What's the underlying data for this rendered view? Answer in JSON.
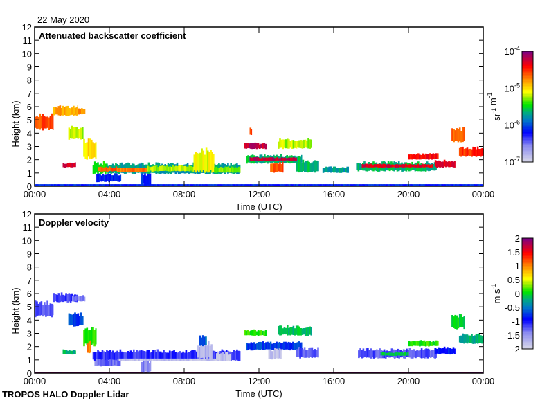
{
  "date_label": "22 May 2020",
  "footer": "TROPOS HALO Doppler Lidar",
  "chart_data": [
    {
      "type": "heatmap",
      "title": "Attenuated backscatter coefficient",
      "xlabel": "Time (UTC)",
      "ylabel": "Height (km)",
      "xlim": [
        0,
        24
      ],
      "ylim": [
        0,
        12
      ],
      "yticks": [
        "0",
        "1",
        "2",
        "3",
        "4",
        "5",
        "6",
        "7",
        "8",
        "9",
        "10",
        "11",
        "12"
      ],
      "xticks": [
        "00:00",
        "04:00",
        "08:00",
        "12:00",
        "16:00",
        "20:00",
        "00:00"
      ],
      "colorbar": {
        "scale": "log10",
        "range": [
          -7,
          -4
        ],
        "ticks": [
          {
            "base": "10",
            "exp": "-4"
          },
          {
            "base": "10",
            "exp": "-5"
          },
          {
            "base": "10",
            "exp": "-6"
          },
          {
            "base": "10",
            "exp": "-7"
          }
        ],
        "unit_parts": [
          {
            "t": "sr",
            "e": "-1"
          },
          {
            "t": " m",
            "e": "-1"
          }
        ]
      },
      "layers_columns": [
        "t_start_h",
        "t_end_h",
        "base_km",
        "top_km",
        "log10_value"
      ],
      "layers": [
        [
          0,
          24,
          0,
          0.15,
          -6.1
        ],
        [
          0,
          1.0,
          4.2,
          5.5,
          -4.6
        ],
        [
          1.0,
          2.3,
          5.3,
          6.1,
          -4.8
        ],
        [
          2.0,
          2.7,
          5.4,
          5.9,
          -4.8
        ],
        [
          1.8,
          2.6,
          3.5,
          4.6,
          -5.2
        ],
        [
          2.6,
          3.3,
          2.0,
          3.7,
          -5.0
        ],
        [
          1.5,
          2.2,
          1.4,
          1.8,
          -4.2
        ],
        [
          3.3,
          4.6,
          0.3,
          1.0,
          -6.1
        ],
        [
          5.7,
          6.2,
          0,
          1.1,
          -6.1
        ],
        [
          3.1,
          3.9,
          0.9,
          1.9,
          -5.5
        ],
        [
          3.9,
          11,
          0.9,
          1.8,
          -5.7
        ],
        [
          3.4,
          4.4,
          1.1,
          1.5,
          -4.6
        ],
        [
          4.4,
          6,
          1.1,
          1.4,
          -4.7
        ],
        [
          6,
          8.5,
          1.1,
          1.6,
          -5.2
        ],
        [
          8.5,
          9.6,
          1.0,
          2.9,
          -5.1
        ],
        [
          9.6,
          11,
          1.0,
          1.5,
          -5.3
        ],
        [
          11.3,
          14.3,
          1.7,
          2.4,
          -5.6
        ],
        [
          11.5,
          14.0,
          1.9,
          2.2,
          -4.2
        ],
        [
          11.2,
          12.4,
          2.8,
          3.3,
          -4.2
        ],
        [
          11.5,
          11.6,
          3.8,
          4.5,
          -4.6
        ],
        [
          12.6,
          13.3,
          1.0,
          1.9,
          -4.6
        ],
        [
          13.0,
          14.8,
          2.8,
          3.6,
          -5.2
        ],
        [
          14.0,
          15.2,
          1.0,
          2.0,
          -5.6
        ],
        [
          15.4,
          16.8,
          1.0,
          1.5,
          -5.7
        ],
        [
          17.2,
          21.5,
          1.1,
          1.9,
          -5.6
        ],
        [
          17.5,
          21.3,
          1.4,
          1.7,
          -4.3
        ],
        [
          20.0,
          21.6,
          2.0,
          2.5,
          -4.4
        ],
        [
          21.4,
          22.5,
          1.4,
          2.0,
          -4.3
        ],
        [
          22.3,
          23.0,
          3.3,
          4.5,
          -4.6
        ],
        [
          22.7,
          24,
          2.2,
          3.0,
          -4.5
        ]
      ]
    },
    {
      "type": "heatmap",
      "title": "Doppler velocity",
      "xlabel": "Time (UTC)",
      "ylabel": "Height (km)",
      "xlim": [
        0,
        24
      ],
      "ylim": [
        0,
        12
      ],
      "yticks": [
        "0",
        "1",
        "2",
        "3",
        "4",
        "5",
        "6",
        "7",
        "8",
        "9",
        "10",
        "11",
        "12"
      ],
      "xticks": [
        "00:00",
        "04:00",
        "08:00",
        "12:00",
        "16:00",
        "20:00",
        "00:00"
      ],
      "colorbar": {
        "scale": "linear",
        "range": [
          -2,
          2
        ],
        "ticks": [
          {
            "base": "2"
          },
          {
            "base": "1.5"
          },
          {
            "base": "1"
          },
          {
            "base": "0.5"
          },
          {
            "base": "0"
          },
          {
            "base": "-0.5"
          },
          {
            "base": "-1"
          },
          {
            "base": "-1.5"
          },
          {
            "base": "-2"
          }
        ],
        "unit_parts": [
          {
            "t": "m s",
            "e": "-1"
          }
        ]
      },
      "layers_columns": [
        "t_start_h",
        "t_end_h",
        "base_km",
        "top_km",
        "velocity_m_s"
      ],
      "layers": [
        [
          0,
          24,
          0,
          0.08,
          2.0
        ],
        [
          0,
          1.0,
          4.2,
          5.5,
          -1.2
        ],
        [
          1.0,
          2.3,
          5.3,
          6.1,
          -1.1
        ],
        [
          2.0,
          2.7,
          5.4,
          5.9,
          -1.4
        ],
        [
          1.8,
          2.6,
          3.5,
          4.6,
          -0.7
        ],
        [
          2.6,
          3.3,
          2.0,
          3.7,
          0.1
        ],
        [
          2.8,
          3.0,
          1.5,
          2.5,
          1.0
        ],
        [
          1.5,
          2.2,
          1.4,
          1.8,
          -0.2
        ],
        [
          3.1,
          11,
          0.9,
          1.8,
          -1.1
        ],
        [
          3.2,
          4.6,
          0.5,
          1.1,
          -1.3
        ],
        [
          5.7,
          6.2,
          0,
          1.1,
          -1.4
        ],
        [
          4.5,
          10.5,
          0.9,
          1.1,
          -1.8
        ],
        [
          8.7,
          9.5,
          1.0,
          2.4,
          -1.7
        ],
        [
          9.7,
          10.5,
          0.9,
          1.6,
          -1.8
        ],
        [
          8.8,
          9.2,
          2.0,
          2.9,
          -0.6
        ],
        [
          11.3,
          14.3,
          1.7,
          2.4,
          -0.7
        ],
        [
          11.2,
          12.4,
          2.8,
          3.3,
          0.1
        ],
        [
          12.5,
          13.2,
          1.0,
          1.9,
          -1.8
        ],
        [
          13.0,
          14.8,
          2.8,
          3.6,
          -0.1
        ],
        [
          14.0,
          15.2,
          1.1,
          2.0,
          -1.2
        ],
        [
          17.3,
          21.5,
          1.1,
          1.9,
          -1.2
        ],
        [
          18.5,
          20.0,
          1.3,
          1.6,
          -0.1
        ],
        [
          20.0,
          21.6,
          2.0,
          2.5,
          0.1
        ],
        [
          21.4,
          22.5,
          1.4,
          2.0,
          -0.8
        ],
        [
          22.3,
          23.0,
          3.3,
          4.5,
          0.0
        ],
        [
          22.7,
          24,
          2.2,
          3.0,
          -0.2
        ]
      ]
    }
  ]
}
